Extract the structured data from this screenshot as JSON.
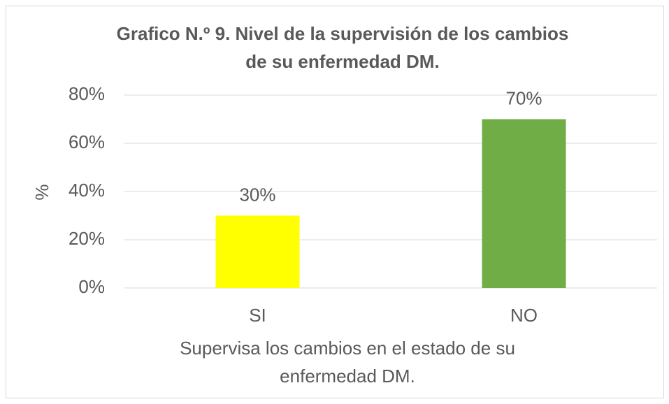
{
  "chart_data": {
    "type": "bar",
    "title": "Grafico N.º 9. Nivel de la supervisión de los cambios de su enfermedad DM.",
    "x_label": "Supervisa los cambios en el estado de su enfermedad DM.",
    "y_label": "%",
    "categories": [
      "SI",
      "NO"
    ],
    "values": [
      30,
      70
    ],
    "value_labels": [
      "30%",
      "70%"
    ],
    "colors": [
      "#ffff00",
      "#70ad47"
    ],
    "ylim": [
      0,
      80
    ],
    "yticks": [
      {
        "value": 0,
        "label": "0%"
      },
      {
        "value": 20,
        "label": "20%"
      },
      {
        "value": 40,
        "label": "40%"
      },
      {
        "value": 60,
        "label": "60%"
      },
      {
        "value": 80,
        "label": "80%"
      }
    ],
    "grid": true
  }
}
